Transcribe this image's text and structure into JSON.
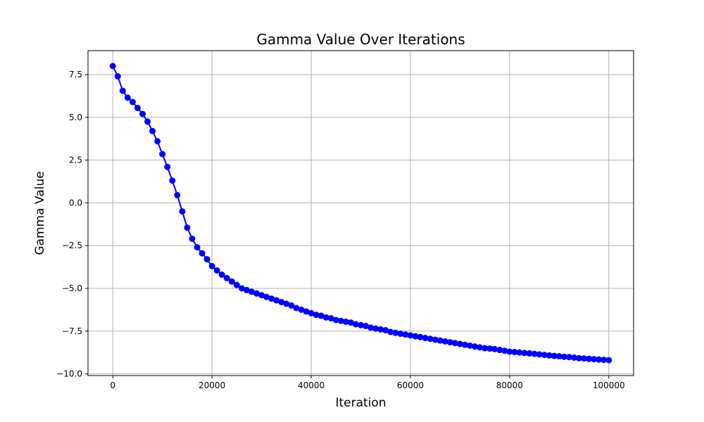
{
  "chart_data": {
    "type": "line",
    "title": "Gamma Value Over Iterations",
    "xlabel": "Iteration",
    "ylabel": "Gamma Value",
    "xlim": [
      -5000,
      105000
    ],
    "ylim": [
      -10.1,
      8.9
    ],
    "xticks": [
      0,
      20000,
      40000,
      60000,
      80000,
      100000
    ],
    "xtick_labels": [
      "0",
      "20000",
      "40000",
      "60000",
      "80000",
      "100000"
    ],
    "yticks": [
      -10.0,
      -7.5,
      -5.0,
      -2.5,
      0.0,
      2.5,
      5.0,
      7.5
    ],
    "ytick_labels": [
      "−10.0",
      "−7.5",
      "−5.0",
      "−2.5",
      "0.0",
      "2.5",
      "5.0",
      "7.5"
    ],
    "grid": true,
    "color": "#0000ff",
    "marker": "circle",
    "series": [
      {
        "name": "Gamma",
        "x": [
          0,
          1000,
          2000,
          3000,
          4000,
          5000,
          6000,
          7000,
          8000,
          9000,
          10000,
          11000,
          12000,
          13000,
          14000,
          15000,
          16000,
          17000,
          18000,
          19000,
          20000,
          21000,
          22000,
          23000,
          24000,
          25000,
          26000,
          27000,
          28000,
          29000,
          30000,
          31000,
          32000,
          33000,
          34000,
          35000,
          36000,
          37000,
          38000,
          39000,
          40000,
          41000,
          42000,
          43000,
          44000,
          45000,
          46000,
          47000,
          48000,
          49000,
          50000,
          51000,
          52000,
          53000,
          54000,
          55000,
          56000,
          57000,
          58000,
          59000,
          60000,
          61000,
          62000,
          63000,
          64000,
          65000,
          66000,
          67000,
          68000,
          69000,
          70000,
          71000,
          72000,
          73000,
          74000,
          75000,
          76000,
          77000,
          78000,
          79000,
          80000,
          81000,
          82000,
          83000,
          84000,
          85000,
          86000,
          87000,
          88000,
          89000,
          90000,
          91000,
          92000,
          93000,
          94000,
          95000,
          96000,
          97000,
          98000,
          99000,
          100000
        ],
        "y": [
          8.0,
          7.4,
          6.55,
          6.15,
          5.9,
          5.55,
          5.2,
          4.75,
          4.2,
          3.6,
          2.85,
          2.1,
          1.3,
          0.45,
          -0.5,
          -1.45,
          -2.1,
          -2.6,
          -2.95,
          -3.3,
          -3.7,
          -3.95,
          -4.2,
          -4.4,
          -4.6,
          -4.8,
          -5.0,
          -5.1,
          -5.2,
          -5.3,
          -5.4,
          -5.5,
          -5.6,
          -5.7,
          -5.8,
          -5.9,
          -6.0,
          -6.15,
          -6.25,
          -6.35,
          -6.45,
          -6.55,
          -6.6,
          -6.7,
          -6.75,
          -6.85,
          -6.9,
          -6.95,
          -7.0,
          -7.1,
          -7.15,
          -7.2,
          -7.3,
          -7.35,
          -7.4,
          -7.45,
          -7.55,
          -7.6,
          -7.65,
          -7.7,
          -7.75,
          -7.8,
          -7.85,
          -7.9,
          -7.95,
          -8.0,
          -8.05,
          -8.1,
          -8.15,
          -8.2,
          -8.25,
          -8.3,
          -8.35,
          -8.4,
          -8.45,
          -8.5,
          -8.52,
          -8.55,
          -8.6,
          -8.65,
          -8.7,
          -8.72,
          -8.75,
          -8.78,
          -8.8,
          -8.83,
          -8.86,
          -8.89,
          -8.92,
          -8.95,
          -8.97,
          -9.0,
          -9.02,
          -9.05,
          -9.08,
          -9.1,
          -9.12,
          -9.14,
          -9.16,
          -9.18,
          -9.2
        ]
      }
    ]
  }
}
